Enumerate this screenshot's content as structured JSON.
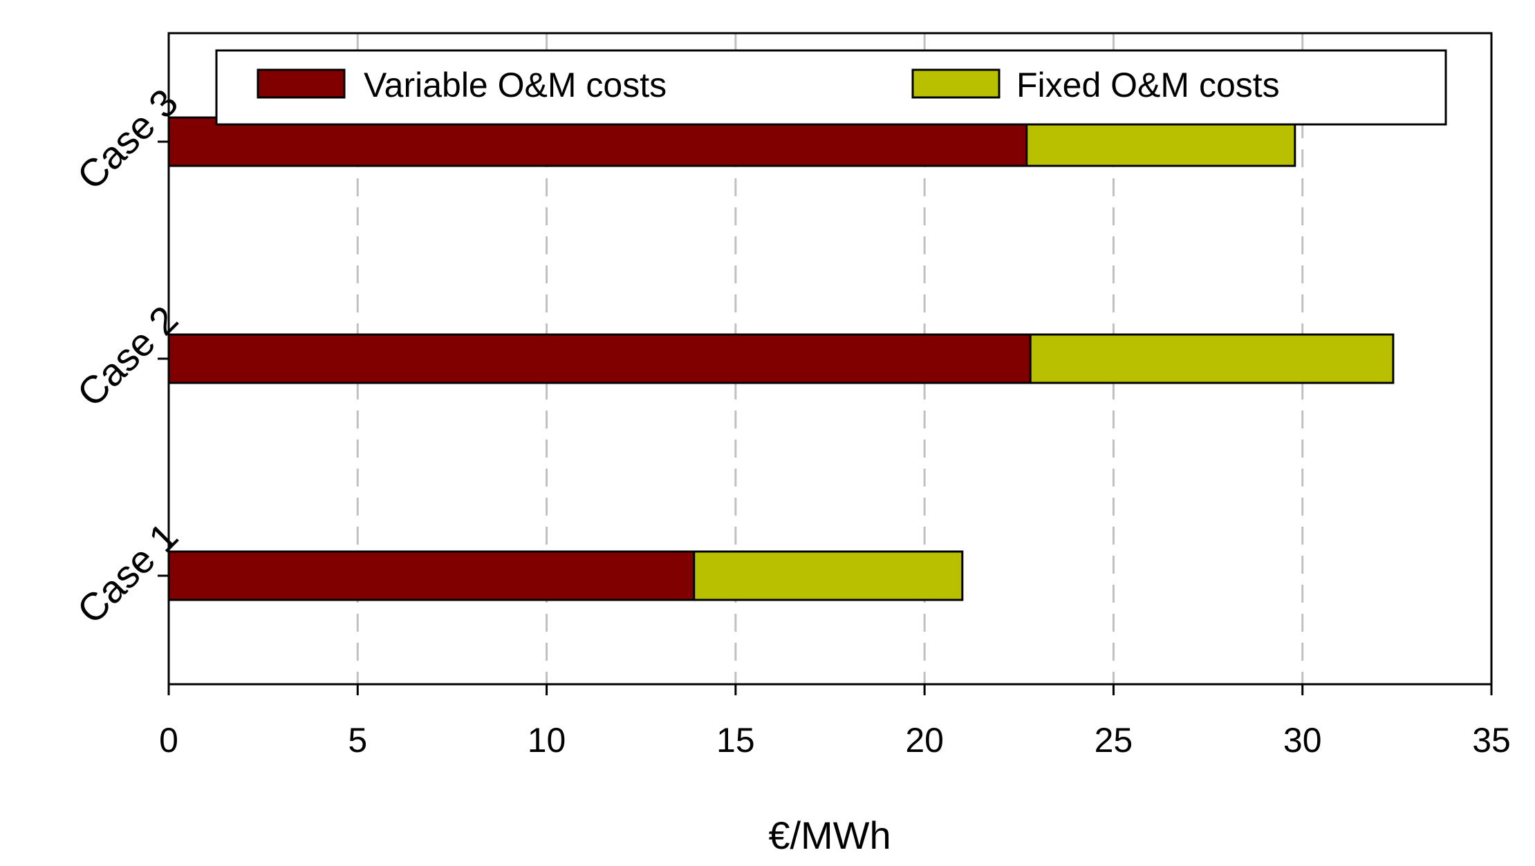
{
  "chart_data": {
    "type": "bar",
    "orientation": "horizontal",
    "stacked": true,
    "title": "",
    "xlabel": "€/MWh",
    "ylabel": "",
    "xlim": [
      0,
      35
    ],
    "xticks": [
      0,
      5,
      10,
      15,
      20,
      25,
      30,
      35
    ],
    "grid": "vertical dashed",
    "legend_position": "top",
    "categories": [
      "Case 1",
      "Case 2",
      "Case 3"
    ],
    "series": [
      {
        "name": "Variable O&M costs",
        "color": "#800000",
        "values": [
          13.9,
          22.8,
          22.7
        ]
      },
      {
        "name": "Fixed O&M costs",
        "color": "#b8c000",
        "values": [
          7.1,
          9.6,
          7.1
        ]
      }
    ]
  }
}
